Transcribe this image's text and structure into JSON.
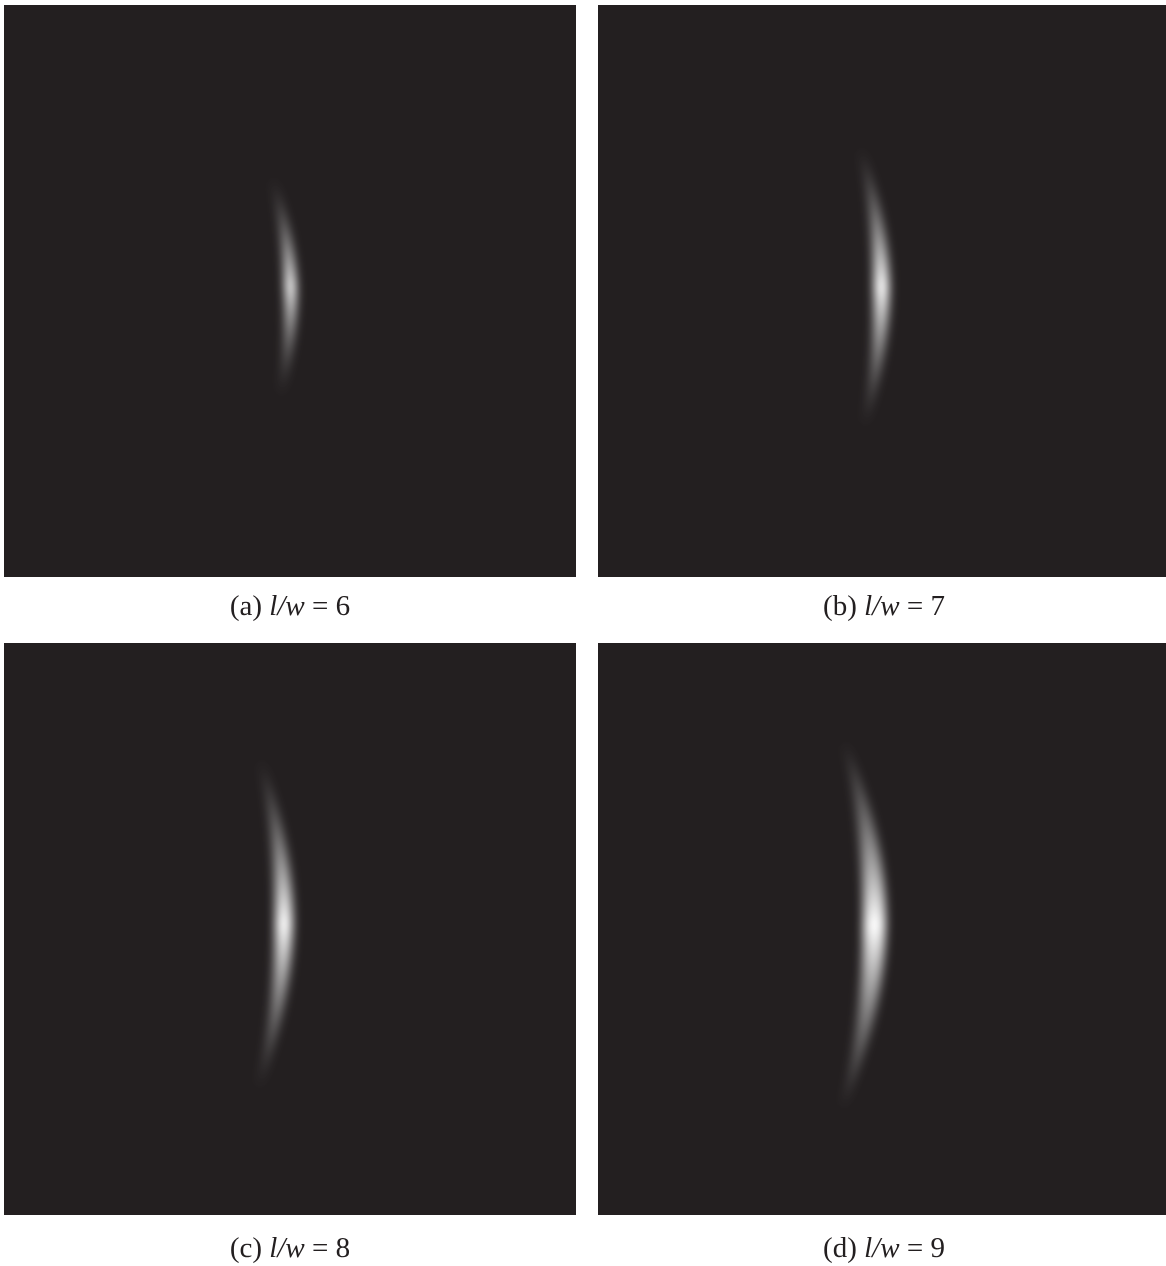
{
  "panels": [
    {
      "id": "a",
      "label": "(a)",
      "expr_lhs": "l/w",
      "equals": "=",
      "value": "6"
    },
    {
      "id": "b",
      "label": "(b)",
      "expr_lhs": "l/w",
      "equals": "=",
      "value": "7"
    },
    {
      "id": "c",
      "label": "(c)",
      "expr_lhs": "l/w",
      "equals": "=",
      "value": "8"
    },
    {
      "id": "d",
      "label": "(d)",
      "expr_lhs": "l/w",
      "equals": "=",
      "value": "9"
    }
  ],
  "colors": {
    "panel_background": "#231f20",
    "crescent_core": "#ffffff",
    "crescent_edge": "#9a9a9a"
  }
}
